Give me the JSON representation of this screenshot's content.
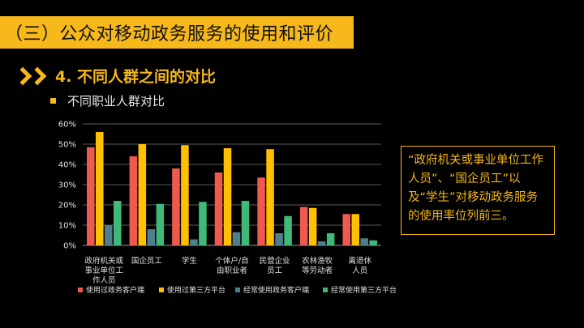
{
  "header": {
    "title": "（三）公众对移动政务服务的使用和评价",
    "section_title": "4. 不同人群之间的对比",
    "subtitle": "不同职业人群对比"
  },
  "note": {
    "text": "“政府机关或事业单位工作人员”、“国企员工”以及“学生”对移动政务服务的使用率位列前三。"
  },
  "colors": {
    "accent": "#f6b81a",
    "background": "#000000"
  },
  "chart_data": {
    "type": "bar",
    "categories": [
      [
        "政府机关或",
        "事业单位工",
        "作人员"
      ],
      [
        "国企员工"
      ],
      [
        "学生"
      ],
      [
        "个体户/自",
        "由职业者"
      ],
      [
        "民营企业",
        "员工"
      ],
      [
        "农林渔牧",
        "等劳动者"
      ],
      [
        "离退休",
        "人员"
      ]
    ],
    "series": [
      {
        "name": "使用过政务客户端",
        "color": "#ef5a4e",
        "values": [
          48.5,
          44,
          38,
          36,
          33.5,
          19,
          15.5
        ]
      },
      {
        "name": "使用过第三方平台",
        "color": "#ffc000",
        "values": [
          56,
          50,
          49.5,
          48,
          47.5,
          18.5,
          15.5
        ]
      },
      {
        "name": "经常使用政务客户端",
        "color": "#4f7f8c",
        "values": [
          10,
          8,
          3,
          6.5,
          6,
          2,
          3.5
        ]
      },
      {
        "name": "经常使用第三方平台",
        "color": "#3fb978",
        "values": [
          22,
          20.5,
          21.5,
          22,
          14.5,
          6,
          2.5
        ]
      }
    ],
    "yticks": [
      "0%",
      "10%",
      "20%",
      "30%",
      "40%",
      "50%",
      "60%"
    ],
    "ylim": [
      0,
      60
    ],
    "grid": true,
    "legend_position": "bottom"
  }
}
